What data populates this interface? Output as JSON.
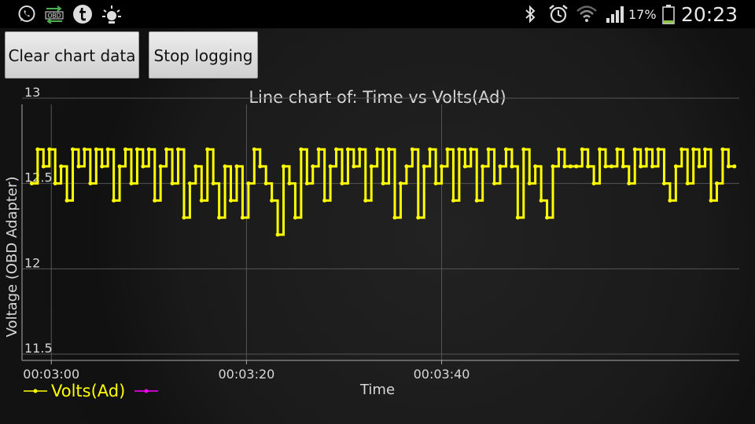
{
  "status_bar": {
    "time": "20:23",
    "battery_percent": "17%",
    "left_icons": [
      "whatsapp-icon",
      "obd-icon",
      "tumblr-icon",
      "brightness-icon"
    ],
    "obd_icon_text": "OBD",
    "right_icons": [
      "bluetooth-icon",
      "alarm-icon",
      "wifi-icon",
      "signal-icon",
      "battery-icon"
    ]
  },
  "toolbar": {
    "clear_label": "Clear chart data",
    "stop_label": "Stop logging"
  },
  "chart_data": {
    "type": "line",
    "title": "Line chart of: Time vs Volts(Ad)",
    "xlabel": "Time",
    "ylabel": "Voltage (OBD Adapter)",
    "x_tick_labels": [
      "00:03:00",
      "00:03:20",
      "00:03:40"
    ],
    "y_tick_labels": [
      "13",
      "12.5",
      "12",
      "11.5"
    ],
    "ylim": [
      11.5,
      13.0
    ],
    "grid": true,
    "legend": "bottom-left",
    "series_color": "#ffff00",
    "series": [
      {
        "name": "Volts(Ad)",
        "x_seconds": [
          178,
          178.6,
          179.2,
          179.8,
          180.4,
          181,
          181.6,
          182.2,
          182.8,
          183.4,
          184,
          184.6,
          185.2,
          185.8,
          186.4,
          187,
          187.6,
          188.2,
          188.8,
          189.4,
          190,
          190.6,
          191.2,
          191.8,
          192.4,
          193,
          193.6,
          194.2,
          194.8,
          195.4,
          196,
          196.6,
          197.2,
          197.8,
          198.4,
          199,
          199.6,
          200.2,
          200.8,
          201.4,
          202,
          202.6,
          203.2,
          203.8,
          204.4,
          205,
          205.6,
          206.2,
          206.8,
          207.4,
          208,
          208.6,
          209.2,
          209.8,
          210.4,
          211,
          211.6,
          212.2,
          212.8,
          213.4,
          214,
          214.6,
          215.2,
          215.8,
          216.4,
          217,
          217.6,
          218.2,
          218.8,
          219.4,
          220,
          220.6,
          221.2,
          221.8,
          222.4,
          223,
          223.6,
          224.2,
          224.8,
          225.4,
          226,
          226.6,
          227.2,
          227.8,
          228.4,
          229,
          229.6,
          230.2,
          230.8,
          231.4,
          232,
          232.6,
          233.2,
          233.8,
          234.4,
          235,
          235.6,
          236.2,
          236.8,
          237.4,
          238,
          238.6,
          239.2,
          239.8,
          240.4,
          241,
          241.6,
          242.2,
          242.8,
          243.4,
          244,
          244.6,
          245.2,
          245.8,
          246.4,
          247,
          247.6,
          248.2,
          248.8,
          249.4,
          250
        ],
        "values": [
          12.5,
          12.7,
          12.6,
          12.7,
          12.5,
          12.6,
          12.4,
          12.7,
          12.6,
          12.7,
          12.5,
          12.7,
          12.6,
          12.7,
          12.4,
          12.6,
          12.7,
          12.5,
          12.7,
          12.6,
          12.7,
          12.4,
          12.6,
          12.7,
          12.5,
          12.7,
          12.3,
          12.5,
          12.6,
          12.4,
          12.7,
          12.5,
          12.3,
          12.6,
          12.4,
          12.6,
          12.3,
          12.5,
          12.7,
          12.6,
          12.5,
          12.4,
          12.2,
          12.6,
          12.5,
          12.3,
          12.7,
          12.5,
          12.6,
          12.7,
          12.4,
          12.6,
          12.7,
          12.5,
          12.7,
          12.6,
          12.7,
          12.4,
          12.6,
          12.7,
          12.5,
          12.7,
          12.3,
          12.5,
          12.6,
          12.7,
          12.3,
          12.6,
          12.7,
          12.5,
          12.6,
          12.7,
          12.4,
          12.7,
          12.6,
          12.7,
          12.4,
          12.6,
          12.7,
          12.5,
          12.6,
          12.7,
          12.6,
          12.3,
          12.7,
          12.5,
          12.6,
          12.4,
          12.3,
          12.6,
          12.7,
          12.6,
          12.6,
          12.6,
          12.7,
          12.6,
          12.5,
          12.7,
          12.6,
          12.6,
          12.7,
          12.6,
          12.5,
          12.7,
          12.6,
          12.7,
          12.6,
          12.7,
          12.5,
          12.4,
          12.6,
          12.7,
          12.5,
          12.7,
          12.6,
          12.7,
          12.4,
          12.5,
          12.7,
          12.6,
          12.6
        ]
      },
      {
        "name": "",
        "color": "#ff00ff",
        "values": []
      }
    ]
  }
}
